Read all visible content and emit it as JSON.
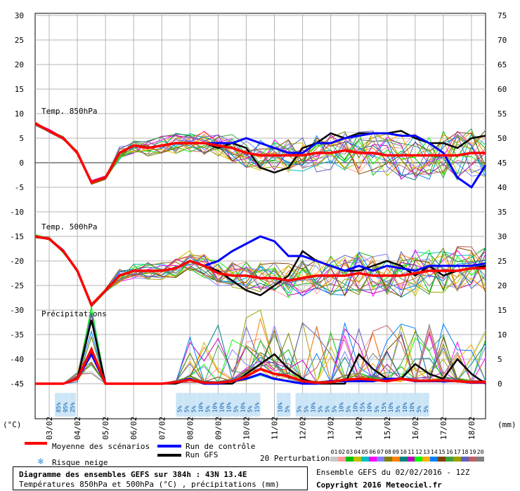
{
  "units": {
    "left": "(°C)",
    "right": "(mm)"
  },
  "panel_labels": {
    "t850": "Temp. 850hPa",
    "t500": "Temp. 500hPa",
    "precip": "Précipitations"
  },
  "y_left_ticks": [
    30,
    25,
    20,
    15,
    10,
    5,
    0,
    -5,
    -10,
    -15,
    -20,
    -25,
    -30,
    -35,
    -40,
    -45
  ],
  "y_right_ticks": [
    75,
    70,
    65,
    60,
    55,
    50,
    45,
    40,
    35,
    30,
    25,
    20,
    15,
    10,
    5,
    0
  ],
  "x_dates": [
    "03/02",
    "04/02",
    "05/02",
    "06/02",
    "07/02",
    "08/02",
    "09/02",
    "10/02",
    "11/02",
    "12/02",
    "13/02",
    "14/02",
    "15/02",
    "16/02",
    "17/02",
    "18/02"
  ],
  "snow_risk": [
    {
      "x": 3.3,
      "labels": [
        "85%",
        "95%",
        "25%"
      ]
    },
    {
      "x": 20.5,
      "labels": [
        "5%",
        "5%",
        "5%",
        "10%",
        "5%",
        "10%",
        "10%",
        "10%",
        "5%",
        "10%",
        "5%",
        "15%"
      ]
    },
    {
      "x": 34.8,
      "labels": [
        "10%",
        "5%"
      ]
    },
    {
      "x": 37.5,
      "labels": [
        "5%",
        "5%",
        "10%",
        "5%",
        "5%",
        "5%",
        "10%",
        "5%",
        "10%",
        "15%",
        "10%",
        "5%",
        "15%",
        "10%",
        "5%",
        "10%",
        "10%",
        "5%",
        "5%"
      ]
    }
  ],
  "legend": {
    "mean": "Moyenne des scénarios",
    "control": "Run de contrôle",
    "gfs": "Run GFS",
    "snow": "Risque neige",
    "perturbations": "20 Perturbations",
    "pert_ids": [
      "01",
      "02",
      "03",
      "04",
      "05",
      "06",
      "07",
      "08",
      "09",
      "10",
      "11",
      "12",
      "13",
      "14",
      "15",
      "16",
      "17",
      "18",
      "19",
      "20"
    ]
  },
  "footer": {
    "title": "Diagramme des ensembles GEFS sur 384h : 43N 13.4E",
    "subtitle": "Températures 850hPa et 500hPa (°C) , précipitations (mm)",
    "run": "Ensemble GEFS du 02/02/2016 - 12Z",
    "copyright": "Copyright 2016 Meteociel.fr"
  },
  "colors": {
    "mean": "#ff0000",
    "control": "#0000ff",
    "gfs": "#000000",
    "grid": "#b4b4b4",
    "perturbations": [
      "#c8c8c8",
      "#ff9999",
      "#00c000",
      "#c0c000",
      "#00c0c0",
      "#ff00ff",
      "#8080ff",
      "#808000",
      "#ff8000",
      "#008080",
      "#c000c0",
      "#00ff00",
      "#ffb000",
      "#0080ff",
      "#804000",
      "#40a040",
      "#a0a000",
      "#6060c0",
      "#c06060",
      "#808080"
    ]
  },
  "chart_data": {
    "type": "line",
    "x_unit": "6-hourly steps from 02/02/2016 12Z",
    "x_range": [
      0,
      64
    ],
    "ylim_left": [
      -45,
      32
    ],
    "ylim_right_precip_mm": [
      0,
      77
    ],
    "series": [
      {
        "name": "Moyenne des scénarios",
        "panel": "Temp. 850hPa",
        "x": [
          0,
          2,
          4,
          6,
          8,
          10,
          12,
          14,
          16,
          18,
          20,
          22,
          24,
          26,
          28,
          30,
          32,
          34,
          36,
          38,
          40,
          42,
          44,
          46,
          48,
          50,
          52,
          54,
          56,
          58,
          60,
          62,
          64
        ],
        "values": [
          8,
          6.5,
          5,
          2,
          -4,
          -3,
          2,
          3.5,
          3,
          3.5,
          4,
          4,
          4,
          3.5,
          3,
          2,
          1.5,
          1.5,
          1.5,
          1.5,
          2,
          2,
          2.5,
          2,
          2,
          1.5,
          1.5,
          1.5,
          1.5,
          1.5,
          1.5,
          2,
          2
        ]
      },
      {
        "name": "Run de contrôle",
        "panel": "Temp. 850hPa",
        "x": [
          0,
          2,
          4,
          6,
          8,
          10,
          12,
          14,
          16,
          18,
          20,
          22,
          24,
          26,
          28,
          30,
          32,
          34,
          36,
          38,
          40,
          42,
          44,
          46,
          48,
          50,
          52,
          54,
          56,
          58,
          60,
          62,
          64
        ],
        "values": [
          8,
          6.5,
          5,
          2,
          -4,
          -3,
          2,
          3.5,
          3,
          3.5,
          4,
          4,
          4,
          4,
          4,
          5,
          4,
          3,
          2,
          2,
          4,
          4,
          5,
          5.5,
          6,
          6,
          5.5,
          5.5,
          4,
          2,
          -3,
          -5,
          -0.5
        ]
      },
      {
        "name": "Run GFS",
        "panel": "Temp. 850hPa",
        "x": [
          0,
          2,
          4,
          6,
          8,
          10,
          12,
          14,
          16,
          18,
          20,
          22,
          24,
          26,
          28,
          30,
          32,
          34,
          36,
          38,
          40,
          42,
          44,
          46,
          48,
          50,
          52,
          54,
          56,
          58,
          60,
          62,
          64
        ],
        "values": [
          8,
          6.5,
          5,
          2,
          -4,
          -3,
          2,
          3.5,
          3,
          3.5,
          4,
          4,
          4,
          3,
          4,
          3,
          -1,
          -2,
          -1,
          3,
          4,
          6,
          5,
          6,
          6,
          6,
          6.5,
          5,
          4,
          4,
          3,
          5,
          5.5
        ]
      },
      {
        "name": "Moyenne des scénarios",
        "panel": "Temp. 500hPa",
        "x": [
          0,
          2,
          4,
          6,
          8,
          10,
          12,
          14,
          16,
          18,
          20,
          22,
          24,
          26,
          28,
          30,
          32,
          34,
          36,
          38,
          40,
          42,
          44,
          46,
          48,
          50,
          52,
          54,
          56,
          58,
          60,
          62,
          64
        ],
        "values": [
          -15,
          -15.5,
          -18,
          -22,
          -29,
          -26,
          -23,
          -22,
          -22,
          -22,
          -21.5,
          -20,
          -21,
          -22.5,
          -23,
          -23,
          -23.5,
          -23.5,
          -24,
          -23.5,
          -23,
          -23,
          -23,
          -22.5,
          -23,
          -23,
          -23,
          -22.5,
          -22,
          -22,
          -22,
          -21.5,
          -21.5
        ]
      },
      {
        "name": "Run de contrôle",
        "panel": "Temp. 500hPa",
        "x": [
          0,
          2,
          4,
          6,
          8,
          10,
          12,
          14,
          16,
          18,
          20,
          22,
          24,
          26,
          28,
          30,
          32,
          34,
          36,
          38,
          40,
          42,
          44,
          46,
          48,
          50,
          52,
          54,
          56,
          58,
          60,
          62,
          64
        ],
        "values": [
          -15,
          -15.5,
          -18,
          -22,
          -29,
          -26,
          -23,
          -22,
          -22,
          -22,
          -21.5,
          -20,
          -21,
          -20,
          -18,
          -16.5,
          -15,
          -16,
          -19,
          -19,
          -20,
          -21,
          -22,
          -21,
          -22,
          -21,
          -21.5,
          -22,
          -21,
          -21,
          -21,
          -21,
          -20.5
        ]
      },
      {
        "name": "Run GFS",
        "panel": "Temp. 500hPa",
        "x": [
          0,
          2,
          4,
          6,
          8,
          10,
          12,
          14,
          16,
          18,
          20,
          22,
          24,
          26,
          28,
          30,
          32,
          34,
          36,
          38,
          40,
          42,
          44,
          46,
          48,
          50,
          52,
          54,
          56,
          58,
          60,
          62,
          64
        ],
        "values": [
          -15,
          -15.5,
          -18,
          -22,
          -29,
          -26,
          -23,
          -22,
          -22,
          -22,
          -21.5,
          -20,
          -21,
          -22,
          -24,
          -26,
          -27,
          -25,
          -23,
          -18,
          -20,
          -21,
          -22,
          -22,
          -21,
          -20,
          -21,
          -23,
          -21,
          -23,
          -22,
          -21.5,
          -21
        ]
      },
      {
        "name": "Moyenne des scénarios",
        "panel": "Précipitations",
        "unit": "mm",
        "x": [
          0,
          2,
          4,
          6,
          8,
          10,
          12,
          14,
          16,
          18,
          20,
          22,
          24,
          26,
          28,
          30,
          32,
          34,
          36,
          38,
          40,
          42,
          44,
          46,
          48,
          50,
          52,
          54,
          56,
          58,
          60,
          62,
          64
        ],
        "values": [
          0,
          0,
          0,
          1,
          7,
          0,
          0,
          0,
          0,
          0,
          0.3,
          0.8,
          0.2,
          0.2,
          0.5,
          1.5,
          3,
          2,
          1.5,
          0.5,
          0.2,
          0.3,
          0.8,
          1,
          0.8,
          0.5,
          1,
          0.6,
          0.6,
          0.7,
          0.5,
          0.3,
          0.3
        ]
      },
      {
        "name": "Run de contrôle",
        "panel": "Précipitations",
        "unit": "mm",
        "x": [
          0,
          2,
          4,
          6,
          8,
          10,
          12,
          14,
          16,
          18,
          20,
          22,
          24,
          26,
          28,
          30,
          32,
          34,
          36,
          38,
          40,
          42,
          44,
          46,
          48,
          50,
          52,
          54,
          56,
          58,
          60,
          62,
          64
        ],
        "values": [
          0,
          0,
          0,
          1,
          6,
          0,
          0,
          0,
          0,
          0,
          0.3,
          1,
          0,
          0,
          0.5,
          1,
          2,
          1,
          0.5,
          0,
          0,
          0.5,
          0.5,
          0.5,
          0.5,
          1,
          1,
          0.5,
          0.5,
          0.5,
          0.5,
          0.2,
          0.2
        ]
      },
      {
        "name": "Run GFS",
        "panel": "Precipitations",
        "unit": "mm",
        "x": [
          0,
          2,
          4,
          6,
          8,
          10,
          12,
          14,
          16,
          18,
          20,
          22,
          24,
          26,
          28,
          30,
          32,
          34,
          36,
          38,
          40,
          42,
          44,
          46,
          48,
          50,
          52,
          54,
          56,
          58,
          60,
          62,
          64
        ],
        "values": [
          0,
          0,
          0,
          1,
          13,
          0,
          0,
          0,
          0,
          0,
          0,
          1,
          0,
          0,
          0,
          2,
          4,
          6,
          3,
          1,
          0,
          0,
          0,
          6,
          3,
          1,
          1,
          4,
          2,
          1,
          5,
          2,
          0
        ]
      }
    ]
  }
}
